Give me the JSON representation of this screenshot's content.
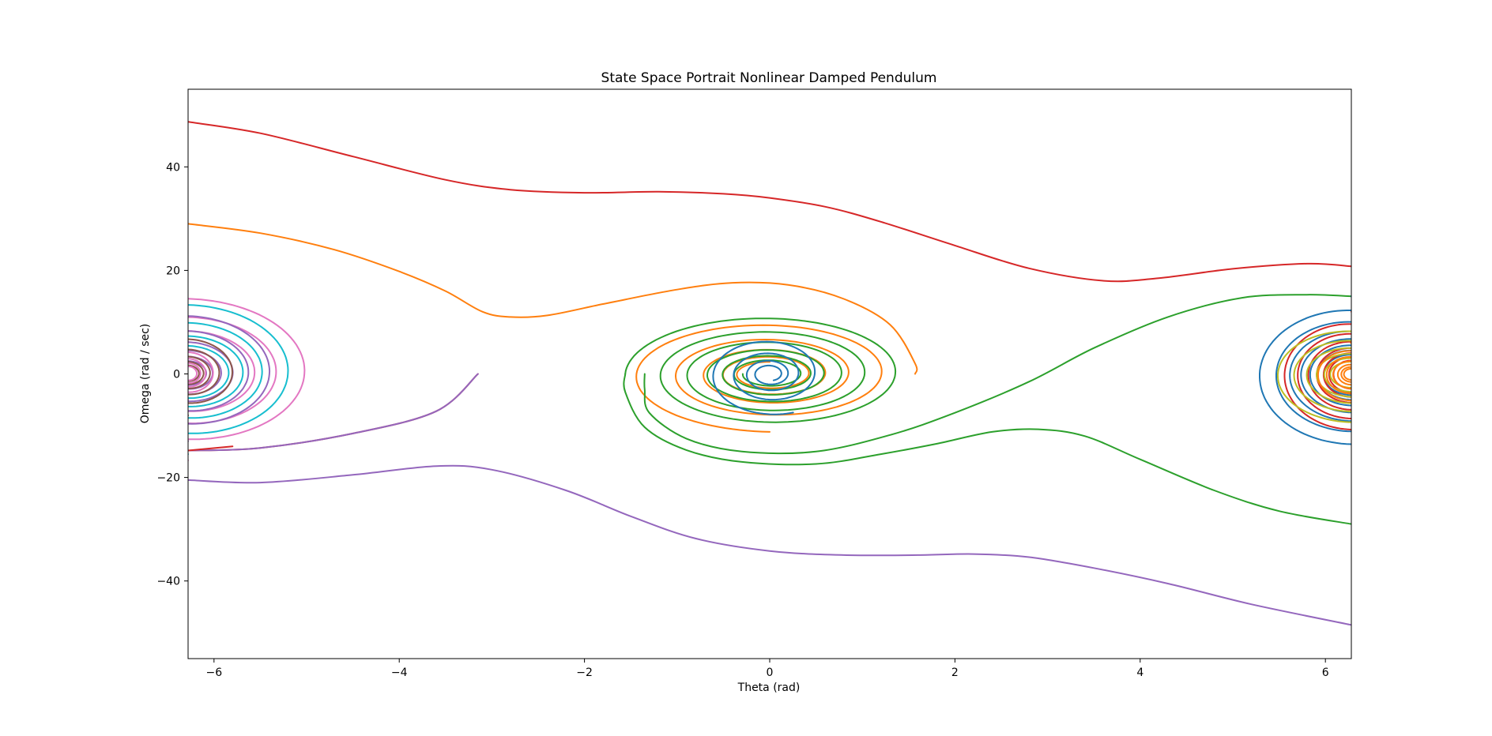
{
  "chart_data": {
    "type": "line",
    "title": "State Space Portrait Nonlinear Damped Pendulum",
    "xlabel": "Theta (rad)",
    "ylabel": "Omega (rad / sec)",
    "xlim": [
      -6.28,
      6.28
    ],
    "ylim": [
      -55,
      55
    ],
    "xticks": [
      -6,
      -4,
      -2,
      0,
      2,
      4,
      6
    ],
    "xtick_labels": [
      "−6",
      "−4",
      "−2",
      "0",
      "2",
      "4",
      "6"
    ],
    "yticks": [
      -40,
      -20,
      0,
      20,
      40
    ],
    "ytick_labels": [
      "−40",
      "−20",
      "0",
      "20",
      "40"
    ],
    "grid": false,
    "legend": "none",
    "series": [
      {
        "color": "#d62728",
        "kind": "path",
        "points": [
          [
            -6.28,
            48.7
          ],
          [
            -5.5,
            46.5
          ],
          [
            -4.5,
            42.0
          ],
          [
            -3.5,
            37.5
          ],
          [
            -2.8,
            35.6
          ],
          [
            -2.0,
            35.0
          ],
          [
            -1.2,
            35.2
          ],
          [
            -0.5,
            34.8
          ],
          [
            0.0,
            34.0
          ],
          [
            0.6,
            32.3
          ],
          [
            1.2,
            29.4
          ],
          [
            2.0,
            24.8
          ],
          [
            2.8,
            20.4
          ],
          [
            3.6,
            18.0
          ],
          [
            4.2,
            18.5
          ],
          [
            5.0,
            20.3
          ],
          [
            5.8,
            21.3
          ],
          [
            6.28,
            20.8
          ]
        ]
      },
      {
        "color": "#ff7f0e",
        "kind": "path",
        "points": [
          [
            -6.28,
            29.0
          ],
          [
            -5.5,
            27.2
          ],
          [
            -4.7,
            24.0
          ],
          [
            -4.0,
            19.8
          ],
          [
            -3.5,
            16.0
          ],
          [
            -3.1,
            12.0
          ],
          [
            -2.8,
            11.0
          ],
          [
            -2.4,
            11.3
          ],
          [
            -1.8,
            13.5
          ],
          [
            -1.0,
            16.3
          ],
          [
            -0.4,
            17.6
          ],
          [
            0.2,
            17.2
          ],
          [
            0.8,
            14.5
          ],
          [
            1.3,
            9.5
          ],
          [
            1.57,
            2.0
          ],
          [
            1.57,
            0.0
          ]
        ]
      },
      {
        "color": "#ff7f0e",
        "kind": "spiral",
        "cx": 0.0,
        "cy": 0.0,
        "ax0": 1.57,
        "ay0": 11.2,
        "decay": 0.35,
        "turns": 4.5,
        "phase": 1.5708
      },
      {
        "color": "#d62728",
        "kind": "path",
        "points": [
          [
            -6.28,
            -14.8
          ],
          [
            -5.5,
            -14.3
          ],
          [
            -4.5,
            -11.5
          ],
          [
            -3.6,
            -7.2
          ],
          [
            -3.15,
            0.0
          ]
        ]
      },
      {
        "color": "#9467bd",
        "kind": "path",
        "points": [
          [
            -6.28,
            -14.8
          ],
          [
            -5.5,
            -14.3
          ],
          [
            -4.5,
            -11.5
          ],
          [
            -3.6,
            -7.2
          ],
          [
            -3.15,
            0.0
          ]
        ]
      },
      {
        "color": "#9467bd",
        "kind": "path",
        "points": [
          [
            -6.28,
            -20.5
          ],
          [
            -5.5,
            -21.0
          ],
          [
            -4.5,
            -19.5
          ],
          [
            -3.6,
            -17.8
          ],
          [
            -3.0,
            -18.5
          ],
          [
            -2.2,
            -22.5
          ],
          [
            -1.5,
            -27.5
          ],
          [
            -0.8,
            -31.8
          ],
          [
            0.0,
            -34.2
          ],
          [
            0.8,
            -35.0
          ],
          [
            1.6,
            -35.0
          ],
          [
            2.2,
            -34.8
          ],
          [
            2.8,
            -35.4
          ],
          [
            3.5,
            -37.5
          ],
          [
            4.3,
            -40.5
          ],
          [
            5.2,
            -44.5
          ],
          [
            6.28,
            -48.5
          ]
        ]
      },
      {
        "color": "#2ca02c",
        "kind": "path",
        "points": [
          [
            6.28,
            -29.0
          ],
          [
            5.5,
            -26.5
          ],
          [
            4.8,
            -22.5
          ],
          [
            4.0,
            -16.5
          ],
          [
            3.4,
            -12.0
          ],
          [
            2.9,
            -10.7
          ],
          [
            2.4,
            -11.2
          ],
          [
            1.8,
            -13.5
          ],
          [
            1.2,
            -15.5
          ],
          [
            0.5,
            -17.4
          ],
          [
            -0.3,
            -17.0
          ],
          [
            -0.9,
            -14.7
          ],
          [
            -1.35,
            -10.3
          ],
          [
            -1.56,
            -3.5
          ],
          [
            -1.56,
            0.0
          ]
        ]
      },
      {
        "color": "#2ca02c",
        "kind": "spiral",
        "cx": 0.0,
        "cy": 0.0,
        "ax0": 1.56,
        "ay0": 11.5,
        "decay": 0.28,
        "turns": 6,
        "phase": 3.1416
      },
      {
        "color": "#2ca02c",
        "kind": "path",
        "points": [
          [
            6.28,
            15.0
          ],
          [
            5.8,
            15.3
          ],
          [
            5.1,
            14.7
          ],
          [
            4.3,
            11.0
          ],
          [
            3.5,
            5.0
          ],
          [
            2.8,
            -1.5
          ],
          [
            2.0,
            -7.5
          ],
          [
            1.3,
            -11.8
          ],
          [
            0.5,
            -15.0
          ],
          [
            -0.3,
            -15.0
          ],
          [
            -0.9,
            -12.5
          ],
          [
            -1.3,
            -7.5
          ],
          [
            -1.35,
            -3.0
          ],
          [
            -1.35,
            0.0
          ]
        ]
      },
      {
        "color": "#1f77b4",
        "kind": "spiral",
        "cx": 0.0,
        "cy": 0.0,
        "ax0": 0.7,
        "ay0": 8.0,
        "decay": 0.45,
        "turns": 4,
        "phase": 1.2
      },
      {
        "color": "#d62728",
        "kind": "path",
        "points": [
          [
            -6.28,
            -14.8
          ],
          [
            -5.8,
            -14.0
          ]
        ]
      },
      {
        "color": "#1f77b4",
        "kind": "spiral",
        "cx": 6.28,
        "cy": 0.0,
        "ax0": 1.15,
        "ay0": 15.0,
        "decay": 0.2,
        "turns": 7,
        "phase": 4.712
      },
      {
        "color": "#d62728",
        "kind": "spiral",
        "cx": 6.28,
        "cy": 0.0,
        "ax0": 0.85,
        "ay0": 12.0,
        "decay": 0.22,
        "turns": 7,
        "phase": 4.712
      },
      {
        "color": "#bcbd22",
        "kind": "spiral",
        "cx": 6.28,
        "cy": 0.0,
        "ax0": 0.95,
        "ay0": 10.5,
        "decay": 0.25,
        "turns": 6,
        "phase": 4.9
      },
      {
        "color": "#ff7f0e",
        "kind": "spiral",
        "cx": 6.28,
        "cy": 0.0,
        "ax0": 0.45,
        "ay0": 6.0,
        "decay": 0.3,
        "turns": 6,
        "phase": 4.7
      },
      {
        "color": "#e377c2",
        "kind": "spiral",
        "cx": -6.28,
        "cy": 0.0,
        "ax0": 1.55,
        "ay0": 16.7,
        "decay": 0.28,
        "turns": 3.5,
        "phase": 1.5708
      },
      {
        "color": "#17becf",
        "kind": "spiral",
        "cx": -6.28,
        "cy": 0.0,
        "ax0": 1.35,
        "ay0": 15.5,
        "decay": 0.3,
        "turns": 4,
        "phase": 1.5708
      },
      {
        "color": "#9467bd",
        "kind": "spiral",
        "cx": -6.28,
        "cy": 0.0,
        "ax0": 1.1,
        "ay0": 13.0,
        "decay": 0.3,
        "turns": 6,
        "phase": 1.5708
      },
      {
        "color": "#8c564b",
        "kind": "spiral",
        "cx": -6.28,
        "cy": 0.0,
        "ax0": 0.62,
        "ay0": 8.0,
        "decay": 0.35,
        "turns": 5,
        "phase": 1.5708
      },
      {
        "color": "#e377c2",
        "kind": "spiral",
        "cx": -6.28,
        "cy": 0.0,
        "ax0": 0.35,
        "ay0": 5.0,
        "decay": 0.35,
        "turns": 4,
        "phase": 1.5708
      }
    ]
  }
}
